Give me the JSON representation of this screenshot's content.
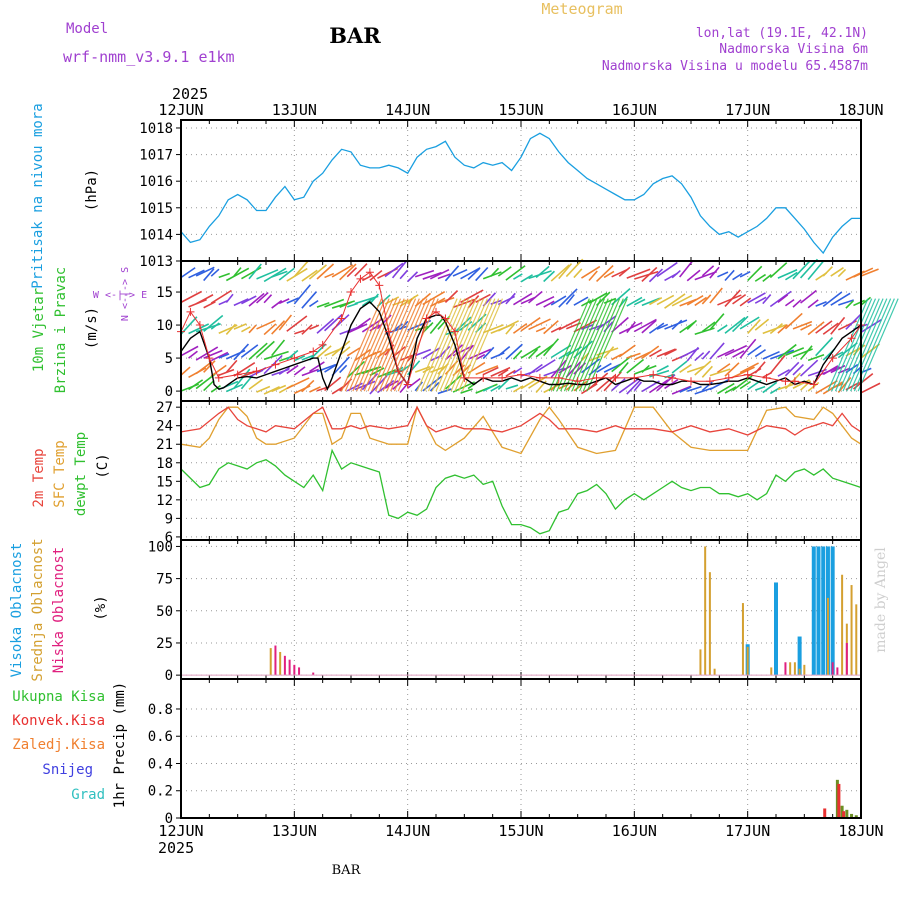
{
  "header": {
    "title": "BAR",
    "chart_kind": "Meteogram",
    "model_label": "Model",
    "model_name": "wrf-nmm_v3.9.1  e1km",
    "coords": "lon,lat (19.1E, 42.1N)",
    "altitude": "Nadmorska Visina 6m",
    "model_altitude": "Nadmorska Visina u modelu 65.4587m",
    "year": "2025",
    "footer_station": "BAR",
    "credit": "made by Angel"
  },
  "colors": {
    "pressure": "#1a9fe0",
    "temp2m": "#e8453c",
    "sfc": "#e0a030",
    "dewpt": "#30c030",
    "windspeed": "#000000",
    "gust": "#e83030",
    "purple": "#a040d0",
    "high_cloud": "#1a9fe0",
    "mid_cloud": "#d4a030",
    "low_cloud": "#e0207f",
    "total_precip": "#30c030",
    "conv_precip": "#e83030",
    "frozen": "#f08030",
    "snow": "#4040e0",
    "hail": "#30c0c0"
  },
  "chart_data": [
    {
      "type": "line",
      "panel": "pressure",
      "title": "Pritisak na nivou mora",
      "ylabel": "(hPa)",
      "x_ticks": [
        "12JUN",
        "13JUN",
        "14JUN",
        "15JUN",
        "16JUN",
        "17JUN",
        "18JUN"
      ],
      "y_ticks": [
        1013,
        1014,
        1015,
        1016,
        1017,
        1018
      ],
      "ylim": [
        1013,
        1018.3
      ],
      "xlim_hours": [
        0,
        144
      ],
      "series": [
        {
          "x": [
            0,
            2,
            4,
            6,
            8,
            10,
            12,
            14,
            16,
            18,
            20,
            22,
            24,
            26,
            28,
            30,
            32,
            34,
            36,
            38,
            40,
            42,
            44,
            46,
            48,
            50,
            52,
            54,
            56,
            58,
            60,
            62,
            64,
            66,
            68,
            70,
            72,
            74,
            76,
            78,
            80,
            82,
            84,
            86,
            88,
            90,
            92,
            94,
            96,
            98,
            100,
            102,
            104,
            106,
            108,
            110,
            112,
            114,
            116,
            118,
            120,
            122,
            124,
            126,
            128,
            130,
            132,
            134,
            136,
            138,
            140,
            142,
            144
          ],
          "values": [
            1014.1,
            1013.7,
            1013.8,
            1014.3,
            1014.7,
            1015.3,
            1015.5,
            1015.3,
            1014.9,
            1014.9,
            1015.4,
            1015.8,
            1015.3,
            1015.4,
            1016.0,
            1016.3,
            1016.8,
            1017.2,
            1017.1,
            1016.6,
            1016.5,
            1016.5,
            1016.6,
            1016.5,
            1016.3,
            1016.9,
            1017.2,
            1017.3,
            1017.5,
            1016.9,
            1016.6,
            1016.5,
            1016.7,
            1016.6,
            1016.7,
            1016.4,
            1016.9,
            1017.6,
            1017.8,
            1017.6,
            1017.1,
            1016.7,
            1016.4,
            1016.1,
            1015.9,
            1015.7,
            1015.5,
            1015.3,
            1015.3,
            1015.5,
            1015.9,
            1016.1,
            1016.2,
            1015.9,
            1015.4,
            1014.7,
            1014.3,
            1014.0,
            1014.1,
            1013.9,
            1014.1,
            1014.3,
            1014.6,
            1015.0,
            1015.0,
            1014.6,
            1014.2,
            1013.7,
            1013.3,
            1013.9,
            1014.3,
            1014.6,
            1014.6
          ]
        }
      ]
    },
    {
      "type": "line",
      "panel": "wind",
      "title": "10m Vjetar",
      "subtitle": "Brzina i Pravac",
      "ylabel": "(m/s)",
      "compass": "W  <-|->  E",
      "compass_vertical": "N <-|-> S",
      "y_ticks": [
        0,
        5,
        10,
        15
      ],
      "ylim": [
        -1.5,
        19.7
      ],
      "series": [
        {
          "name": "speed",
          "x": [
            0,
            2,
            4,
            6,
            7,
            8,
            9,
            10,
            11,
            12,
            14,
            16,
            18,
            20,
            22,
            24,
            26,
            28,
            29,
            30,
            31,
            32,
            34,
            36,
            38,
            40,
            42,
            44,
            46,
            48,
            50,
            52,
            54,
            55,
            56,
            58,
            60,
            62,
            64,
            66,
            68,
            70,
            72,
            74,
            76,
            78,
            80,
            82,
            84,
            86,
            88,
            90,
            92,
            94,
            96,
            98,
            100,
            102,
            104,
            106,
            108,
            110,
            112,
            114,
            116,
            118,
            120,
            122,
            124,
            126,
            128,
            130,
            132,
            134,
            136,
            138,
            140,
            142,
            144
          ],
          "values": [
            6,
            8,
            9,
            5,
            1,
            0.3,
            0.5,
            1,
            1.5,
            2,
            2.2,
            2,
            2.5,
            3,
            3.5,
            4,
            4.5,
            5,
            5,
            2,
            0.3,
            2,
            6,
            10,
            12.5,
            13.5,
            12,
            8,
            3,
            1,
            8,
            11,
            11.5,
            11.5,
            10.5,
            7,
            2,
            1,
            2,
            1.5,
            1.5,
            2,
            1.5,
            2,
            1.5,
            1,
            1,
            1.2,
            1,
            1,
            1.5,
            2,
            1,
            1.5,
            2,
            1.5,
            1.5,
            1,
            1,
            1.5,
            1.5,
            1,
            1,
            1.2,
            1.5,
            1.5,
            2,
            1.5,
            1,
            1.5,
            2,
            1,
            1.5,
            1,
            4,
            6,
            8,
            9,
            10
          ]
        },
        {
          "name": "gust",
          "x": [
            0,
            2,
            4,
            6,
            8,
            12,
            16,
            20,
            24,
            28,
            30,
            34,
            36,
            38,
            40,
            42,
            44,
            46,
            48,
            52,
            54,
            56,
            58,
            60,
            64,
            68,
            72,
            76,
            80,
            84,
            88,
            92,
            96,
            100,
            104,
            108,
            112,
            116,
            120,
            124,
            128,
            130,
            134,
            138,
            142,
            144
          ],
          "values": [
            9,
            12,
            10,
            5,
            2,
            2.5,
            3,
            4,
            5,
            6,
            7,
            11,
            15,
            17,
            18,
            16,
            9,
            3,
            1,
            11,
            12,
            11,
            9,
            2,
            2,
            2,
            2.5,
            2,
            2,
            1.5,
            2,
            2,
            2,
            2.5,
            2,
            1.5,
            1.5,
            2,
            2.5,
            2,
            1.5,
            1.5,
            1,
            5,
            8,
            10
          ]
        }
      ]
    },
    {
      "type": "line",
      "panel": "temperature",
      "title_series": [
        "2m Temp",
        "SFC Temp",
        "dewpt Temp"
      ],
      "ylabel": "(C)",
      "y_ticks": [
        6,
        9,
        12,
        15,
        18,
        21,
        24,
        27
      ],
      "ylim": [
        5.5,
        28
      ],
      "series": [
        {
          "name": "2m Temp",
          "x": [
            0,
            4,
            8,
            10,
            12,
            14,
            16,
            18,
            20,
            24,
            28,
            30,
            32,
            34,
            36,
            38,
            40,
            44,
            48,
            50,
            52,
            54,
            56,
            58,
            60,
            64,
            68,
            72,
            76,
            78,
            80,
            84,
            88,
            92,
            94,
            96,
            100,
            104,
            108,
            112,
            116,
            120,
            124,
            128,
            130,
            132,
            134,
            136,
            138,
            140,
            142,
            144
          ],
          "values": [
            23,
            23.5,
            26,
            27,
            25,
            24,
            23.5,
            23,
            24,
            23.5,
            26,
            27,
            23.5,
            23.5,
            24,
            23.5,
            24,
            23.5,
            24,
            27,
            24,
            23,
            23.5,
            24,
            23.5,
            23.5,
            23,
            24,
            26,
            25,
            23.5,
            23.5,
            23,
            24,
            23.5,
            23.5,
            23.5,
            23,
            24,
            23,
            23.5,
            22.5,
            24,
            23.5,
            22.5,
            23.5,
            24,
            24.5,
            24,
            26,
            24,
            23
          ]
        },
        {
          "name": "SFC Temp",
          "x": [
            0,
            4,
            6,
            8,
            10,
            12,
            14,
            16,
            18,
            20,
            24,
            28,
            30,
            32,
            34,
            36,
            38,
            40,
            44,
            48,
            50,
            52,
            54,
            56,
            58,
            60,
            64,
            68,
            72,
            76,
            78,
            80,
            84,
            88,
            92,
            96,
            100,
            104,
            108,
            112,
            116,
            120,
            124,
            128,
            130,
            134,
            136,
            138,
            140,
            142,
            144
          ],
          "values": [
            21,
            20.5,
            22,
            25,
            27,
            27,
            25.5,
            22,
            21,
            21,
            22,
            26,
            26,
            21,
            22,
            26,
            26,
            22,
            21,
            21,
            27,
            24,
            21,
            20,
            21,
            22,
            25.5,
            20.5,
            19.5,
            25,
            27,
            25,
            20.5,
            19.5,
            20,
            27,
            27,
            23,
            20.5,
            20,
            20,
            20,
            26.5,
            27,
            25.5,
            25,
            27,
            26,
            24,
            22,
            21
          ]
        },
        {
          "name": "dewpt Temp",
          "x": [
            0,
            4,
            6,
            8,
            10,
            12,
            14,
            16,
            18,
            20,
            22,
            24,
            26,
            28,
            30,
            32,
            34,
            36,
            38,
            40,
            42,
            44,
            46,
            48,
            50,
            52,
            54,
            56,
            58,
            60,
            62,
            64,
            66,
            68,
            70,
            72,
            74,
            76,
            78,
            80,
            82,
            84,
            86,
            88,
            90,
            92,
            94,
            96,
            98,
            100,
            102,
            104,
            106,
            108,
            110,
            112,
            114,
            116,
            118,
            120,
            122,
            124,
            126,
            128,
            130,
            132,
            134,
            136,
            138,
            140,
            142,
            144
          ],
          "values": [
            17,
            14,
            14.5,
            17,
            18,
            17.5,
            17,
            18,
            18.5,
            17.5,
            16,
            15,
            14,
            16,
            13.5,
            20,
            17,
            18,
            17.5,
            17,
            16.5,
            9.5,
            9,
            10,
            9.5,
            10.5,
            14,
            15.5,
            16,
            15.5,
            16,
            14.5,
            15,
            11,
            8,
            8,
            7.5,
            6.5,
            7,
            10,
            10.5,
            13,
            13.5,
            14.5,
            13,
            10.5,
            12,
            13,
            12,
            13,
            14,
            15,
            14,
            13.5,
            14,
            14,
            13,
            13,
            12.5,
            13,
            12,
            13,
            16,
            15,
            16.5,
            17,
            16,
            17,
            15.5,
            15,
            14.5,
            14
          ]
        }
      ]
    },
    {
      "type": "bar",
      "panel": "clouds",
      "title_series": [
        "Visoka Oblacnost",
        "Srednja Oblacnost",
        "Niska Oblacnost"
      ],
      "ylabel": "(%)",
      "y_ticks": [
        0,
        25,
        50,
        75,
        100
      ],
      "ylim": [
        -3,
        105
      ],
      "series": [
        {
          "name": "Visoka Oblacnost",
          "x": [
            120,
            126,
            131,
            134,
            135,
            136,
            137,
            138
          ],
          "values": [
            24,
            72,
            30,
            100,
            100,
            100,
            100,
            100
          ]
        },
        {
          "name": "Srednja Oblacnost",
          "x": [
            19,
            21,
            110,
            111,
            112,
            113,
            119,
            120,
            125,
            129,
            130,
            131,
            132,
            137,
            140,
            141,
            142,
            143,
            144
          ],
          "values": [
            21,
            18,
            20,
            100,
            80,
            5,
            56,
            22,
            6,
            10,
            10,
            5,
            8,
            60,
            78,
            40,
            70,
            55,
            100
          ]
        },
        {
          "name": "Niska Oblacnost",
          "x": [
            20,
            22,
            23,
            24,
            25,
            28,
            128,
            138,
            139,
            141
          ],
          "values": [
            23,
            15,
            12,
            8,
            6,
            2,
            10,
            10,
            6,
            25
          ]
        }
      ]
    },
    {
      "type": "bar",
      "panel": "precip",
      "legend": [
        "Ukupna Kisa",
        "Konvek.Kisa",
        "Zaledj.Kisa",
        "Snijeg",
        "Grad"
      ],
      "ylabel": "1hr Precip (mm)",
      "y_ticks": [
        0,
        0.2,
        0.4,
        0.6,
        0.8
      ],
      "ylim": [
        0,
        1.02
      ],
      "series": [
        {
          "name": "Ukupna Kisa",
          "x": [
            139,
            140,
            141,
            142,
            143
          ],
          "values": [
            0.28,
            0.09,
            0.06,
            0.03,
            0.02
          ]
        },
        {
          "name": "Konvek.Kisa",
          "x": [
            136,
            139,
            140
          ],
          "values": [
            0.07,
            0.25,
            0.05
          ]
        }
      ]
    }
  ]
}
